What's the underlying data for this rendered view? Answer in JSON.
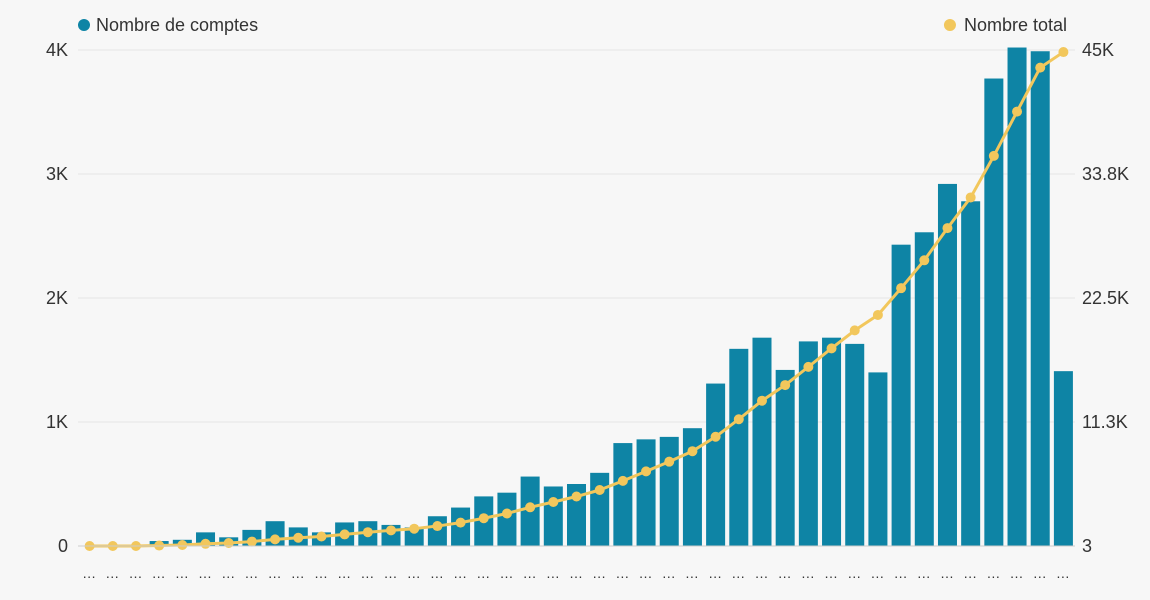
{
  "chart_data": {
    "type": "bar",
    "title": "",
    "xlabel": "",
    "ylabel": "",
    "categories": [
      "…",
      "…",
      "…",
      "…",
      "…",
      "…",
      "…",
      "…",
      "…",
      "…",
      "…",
      "…",
      "…",
      "…",
      "…",
      "…",
      "…",
      "…",
      "…",
      "…",
      "…",
      "…",
      "…",
      "…",
      "…",
      "…",
      "…",
      "…",
      "…",
      "…",
      "…",
      "…",
      "…",
      "…",
      "…",
      "…",
      "…",
      "…",
      "…",
      "…",
      "…",
      "…",
      "…"
    ],
    "series": [
      {
        "name": "Nombre de comptes",
        "type": "bar",
        "axis": "left",
        "color": "#0e84a5",
        "values": [
          0,
          0,
          0,
          40,
          50,
          110,
          70,
          130,
          200,
          150,
          110,
          190,
          200,
          170,
          150,
          240,
          310,
          400,
          430,
          560,
          480,
          500,
          590,
          830,
          860,
          880,
          950,
          1310,
          1590,
          1680,
          1420,
          1650,
          1680,
          1630,
          1400,
          2430,
          2530,
          2920,
          2780,
          3770,
          4020,
          3990,
          1410
        ]
      },
      {
        "name": "Nombre total",
        "type": "line",
        "axis": "right",
        "color": "#f2c75c",
        "values": [
          3,
          3,
          3,
          43,
          93,
          203,
          273,
          403,
          603,
          753,
          863,
          1053,
          1253,
          1423,
          1573,
          1813,
          2123,
          2523,
          2953,
          3513,
          3993,
          4493,
          5083,
          5913,
          6773,
          7653,
          8603,
          9913,
          11503,
          13183,
          14603,
          16253,
          17933,
          19563,
          20963,
          23393,
          25923,
          28843,
          31623,
          35393,
          39413,
          43403,
          44813
        ]
      }
    ],
    "y_left": {
      "ylim": [
        0,
        4000
      ],
      "ticks": [
        0,
        1000,
        2000,
        3000,
        4000
      ],
      "tick_labels": [
        "0",
        "1K",
        "2K",
        "3K",
        "4K"
      ]
    },
    "y_right": {
      "ylim": [
        3,
        45000
      ],
      "ticks": [
        3,
        11252,
        22502,
        33751,
        45000
      ],
      "tick_labels": [
        "3",
        "11.3K",
        "22.5K",
        "33.8K",
        "45K"
      ]
    },
    "grid": true,
    "legend": {
      "left_item": "Nombre de comptes",
      "right_item": "Nombre total",
      "placement": "top"
    }
  }
}
